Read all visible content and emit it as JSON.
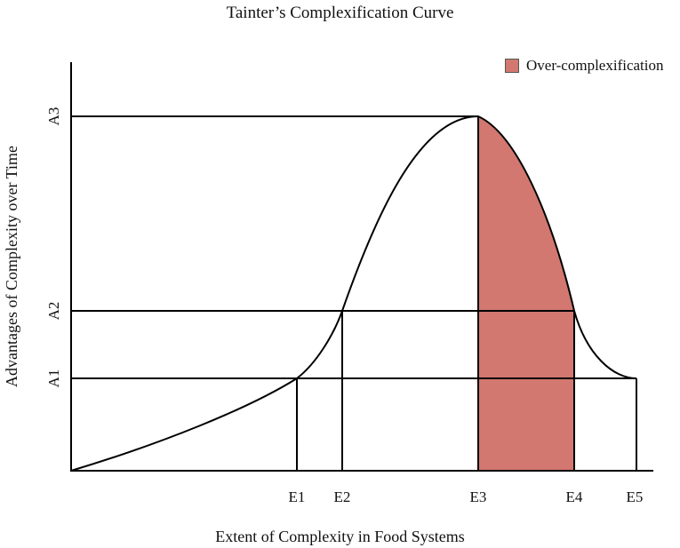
{
  "title": "Tainter’s Complexification Curve",
  "xlabel": "Extent of Complexity in Food Systems",
  "ylabel": "Advantages of Complexity over Time",
  "legend": {
    "label": "Over-complexification",
    "color": "#d27870"
  },
  "x_ticks": [
    "E1",
    "E2",
    "E3",
    "E4",
    "E5"
  ],
  "y_ticks": [
    "A1",
    "A2",
    "A3"
  ]
}
